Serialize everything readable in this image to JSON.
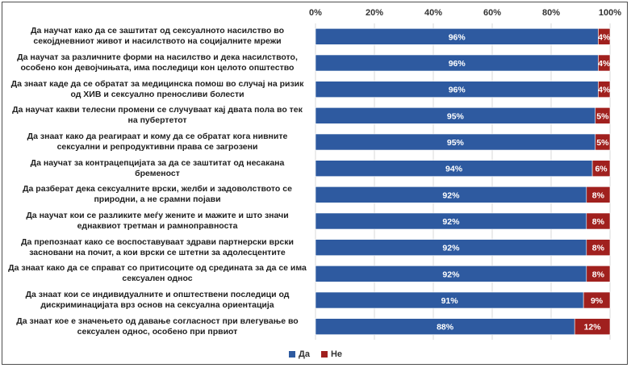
{
  "chart_data": {
    "type": "bar",
    "orientation": "horizontal",
    "stacked": "100%",
    "categories": [
      "Да научат како да се заштитат од сексуалното насилство во секојдневниот живот и насилството на социјалните мрежи",
      "Да научат за различните форми на насилство и дека насилството, особено кон девојчињата, има последици кон целото општество",
      "Да знаат каде да се обратат за медицинска помош во случај на ризик од ХИВ и сексуално преносливи болести",
      "Да научат какви телесни промени се случуваат кај двата пола во тек на пубертетот",
      "Да знаат како да реагираат и кому да се обратат кога нивните сексуални и репродуктивни права се загрозени",
      "Да научат за контрацепцијата за да се заштитат од несакана бременост",
      "Да разберат дека сексуалните врски, желби и задоволството се природни, а не срамни појави",
      "Да научат кои се разликите меѓу жените и мажите и што значи еднаквиот третман и рамноправноста",
      "Да препознаат како се воспоставуваат здрави партнерски врски засновани на почит, а кои врски се штетни за адолесцентите",
      "Да знаат како да се справат со притисоците од средината за да се има сексуален однос",
      "Да знаат кои се индивидуалните и општествени последици од дискриминацијата врз основ на сексуална ориентација",
      "Да знаат кое е значењето од давање согласност при влегување во сексуален однос, особено при првиот"
    ],
    "series": [
      {
        "name": "Да",
        "color": "#2e5aa0",
        "values": [
          96,
          96,
          96,
          95,
          95,
          94,
          92,
          92,
          92,
          92,
          91,
          88
        ],
        "labels": [
          "96%",
          "96%",
          "96%",
          "95%",
          "95%",
          "94%",
          "92%",
          "92%",
          "92%",
          "92%",
          "91%",
          "88%"
        ]
      },
      {
        "name": "Не",
        "color": "#a0201e",
        "values": [
          4,
          4,
          4,
          5,
          5,
          6,
          8,
          8,
          8,
          8,
          9,
          12
        ],
        "labels": [
          "4%",
          "4%",
          "4%",
          "5%",
          "5%",
          "6%",
          "8%",
          "8%",
          "8%",
          "8%",
          "9%",
          "12%"
        ]
      }
    ],
    "xlim": [
      0,
      100
    ],
    "ticks": [
      "0%",
      "20%",
      "40%",
      "60%",
      "80%",
      "100%"
    ],
    "tick_values": [
      0,
      20,
      40,
      60,
      80,
      100
    ],
    "gridlines": true,
    "legend_position": "bottom"
  }
}
